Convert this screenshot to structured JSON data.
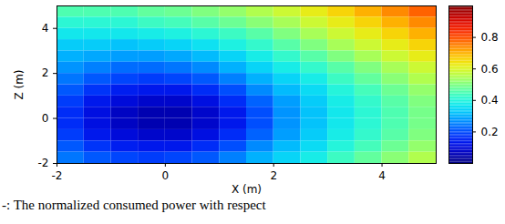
{
  "chart_data": {
    "type": "heatmap",
    "caption": "-: The normalized consumed power with respect",
    "xlabel": "X (m)",
    "ylabel": "Z (m)",
    "xlim": [
      -2,
      5
    ],
    "ylim": [
      -2,
      5
    ],
    "xticks": [
      -2,
      0,
      2,
      4
    ],
    "yticks": [
      -2,
      0,
      2,
      4
    ],
    "x": [
      -1.75,
      -1.25,
      -0.75,
      -0.25,
      0.25,
      0.75,
      1.25,
      1.75,
      2.25,
      2.75,
      3.25,
      3.75,
      4.25,
      4.75
    ],
    "y": [
      4.75,
      4.25,
      3.75,
      3.25,
      2.75,
      2.25,
      1.75,
      1.25,
      0.75,
      0.25,
      -0.25,
      -0.75,
      -1.25,
      -1.75
    ],
    "values": [
      [
        0.45,
        0.45,
        0.45,
        0.47,
        0.48,
        0.5,
        0.52,
        0.55,
        0.58,
        0.62,
        0.66,
        0.7,
        0.74,
        0.78
      ],
      [
        0.41,
        0.41,
        0.41,
        0.43,
        0.44,
        0.46,
        0.48,
        0.51,
        0.54,
        0.58,
        0.62,
        0.66,
        0.7,
        0.74
      ],
      [
        0.37,
        0.37,
        0.37,
        0.38,
        0.39,
        0.41,
        0.43,
        0.46,
        0.5,
        0.54,
        0.58,
        0.62,
        0.66,
        0.7
      ],
      [
        0.33,
        0.33,
        0.32,
        0.33,
        0.34,
        0.36,
        0.39,
        0.42,
        0.46,
        0.5,
        0.54,
        0.58,
        0.62,
        0.66
      ],
      [
        0.3,
        0.29,
        0.28,
        0.28,
        0.29,
        0.31,
        0.34,
        0.38,
        0.42,
        0.46,
        0.5,
        0.54,
        0.58,
        0.62
      ],
      [
        0.27,
        0.25,
        0.23,
        0.23,
        0.24,
        0.26,
        0.3,
        0.34,
        0.38,
        0.42,
        0.46,
        0.5,
        0.54,
        0.58
      ],
      [
        0.24,
        0.21,
        0.19,
        0.18,
        0.19,
        0.21,
        0.25,
        0.3,
        0.34,
        0.38,
        0.43,
        0.47,
        0.51,
        0.55
      ],
      [
        0.21,
        0.17,
        0.14,
        0.13,
        0.13,
        0.16,
        0.2,
        0.26,
        0.31,
        0.35,
        0.4,
        0.44,
        0.48,
        0.52
      ],
      [
        0.18,
        0.13,
        0.1,
        0.08,
        0.08,
        0.11,
        0.16,
        0.22,
        0.28,
        0.33,
        0.38,
        0.42,
        0.46,
        0.5
      ],
      [
        0.16,
        0.11,
        0.07,
        0.05,
        0.05,
        0.08,
        0.13,
        0.2,
        0.27,
        0.32,
        0.37,
        0.41,
        0.45,
        0.49
      ],
      [
        0.16,
        0.11,
        0.07,
        0.05,
        0.05,
        0.08,
        0.13,
        0.2,
        0.27,
        0.32,
        0.37,
        0.41,
        0.45,
        0.49
      ],
      [
        0.18,
        0.13,
        0.1,
        0.08,
        0.08,
        0.11,
        0.16,
        0.22,
        0.28,
        0.33,
        0.38,
        0.42,
        0.46,
        0.5
      ],
      [
        0.21,
        0.17,
        0.14,
        0.13,
        0.13,
        0.16,
        0.2,
        0.26,
        0.31,
        0.35,
        0.4,
        0.44,
        0.48,
        0.52
      ],
      [
        0.24,
        0.21,
        0.19,
        0.18,
        0.19,
        0.21,
        0.25,
        0.3,
        0.34,
        0.38,
        0.43,
        0.47,
        0.51,
        0.55
      ]
    ],
    "colorbar_range": [
      0,
      1
    ],
    "colorbar_ticks": [
      0.2,
      0.4,
      0.6,
      0.8
    ]
  }
}
